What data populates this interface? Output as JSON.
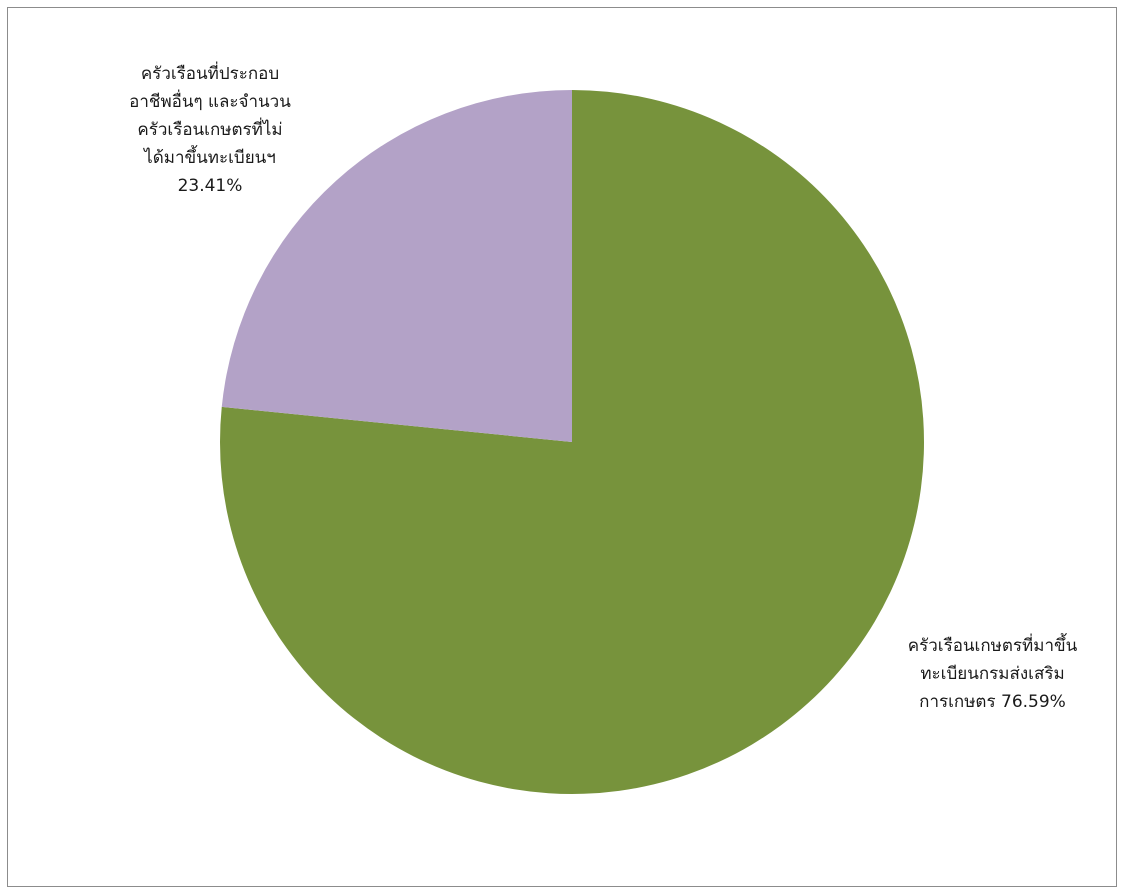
{
  "chart_data": {
    "type": "pie",
    "title": "",
    "slices": [
      {
        "label_lines": [
          "ครัวเรือนเกษตรที่มาขึ้น",
          "ทะเบียนกรมส่งเสริม",
          "การเกษตร 76.59%"
        ],
        "value": 76.59,
        "color": "#77933c"
      },
      {
        "label_lines": [
          "ครัวเรือนที่ประกอบ",
          "อาชีพอื่นๆ และจำนวน",
          "ครัวเรือนเกษตรที่ไม่",
          "ได้มาขึ้นทะเบียนฯ",
          "23.41%"
        ],
        "value": 23.41,
        "color": "#b3a2c7"
      }
    ],
    "start_angle_deg": 0,
    "direction": "clockwise",
    "legend": "none"
  }
}
